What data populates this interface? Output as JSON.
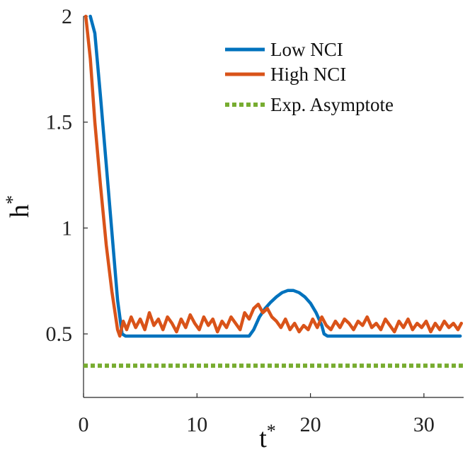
{
  "chart_data": {
    "type": "line",
    "title": "",
    "xlabel": "t",
    "xlabel_superscript": "*",
    "ylabel": "h",
    "ylabel_superscript": "*",
    "xlim": [
      0,
      33.5
    ],
    "ylim": [
      0.2,
      2.0
    ],
    "x_ticks": [
      0,
      10,
      20,
      30
    ],
    "x_tick_labels": [
      "0",
      "10",
      "20",
      "30"
    ],
    "y_ticks": [
      0.5,
      1,
      1.5,
      2
    ],
    "y_tick_labels": [
      "0.5",
      "1",
      "1.5",
      "2"
    ],
    "grid": false,
    "legend_position": "top-right",
    "series": [
      {
        "name": "Low NCI",
        "color": "#0072BD",
        "style": "solid",
        "x": [
          0.6,
          1.0,
          1.5,
          2.0,
          2.5,
          3.0,
          3.4,
          3.7,
          4,
          5,
          6,
          7,
          8,
          9,
          10,
          11,
          12,
          13,
          14,
          14.6,
          15.0,
          15.5,
          16,
          16.5,
          17,
          17.5,
          18,
          18.5,
          19,
          19.5,
          20,
          20.5,
          21,
          21.2,
          21.5,
          22,
          23,
          24,
          25,
          26,
          27,
          28,
          29,
          30,
          31,
          32,
          33.2
        ],
        "y": [
          2.0,
          1.92,
          1.62,
          1.3,
          0.98,
          0.66,
          0.5,
          0.49,
          0.49,
          0.49,
          0.49,
          0.49,
          0.49,
          0.49,
          0.49,
          0.49,
          0.49,
          0.49,
          0.49,
          0.49,
          0.52,
          0.58,
          0.62,
          0.65,
          0.675,
          0.695,
          0.705,
          0.705,
          0.695,
          0.675,
          0.645,
          0.6,
          0.54,
          0.5,
          0.49,
          0.49,
          0.49,
          0.49,
          0.49,
          0.49,
          0.49,
          0.49,
          0.49,
          0.49,
          0.49,
          0.49,
          0.49
        ]
      },
      {
        "name": "High NCI",
        "color": "#D95319",
        "style": "solid",
        "x": [
          0.2,
          0.6,
          1.0,
          1.5,
          2.0,
          2.5,
          3.0,
          3.2,
          3.5,
          3.8,
          4.2,
          4.6,
          5.0,
          5.4,
          5.8,
          6.2,
          6.6,
          7.0,
          7.4,
          7.8,
          8.2,
          8.6,
          9.0,
          9.4,
          9.8,
          10.2,
          10.6,
          11.0,
          11.4,
          11.8,
          12.2,
          12.6,
          13.0,
          13.4,
          13.8,
          14.2,
          14.6,
          15.0,
          15.4,
          15.8,
          16.2,
          16.6,
          17.0,
          17.4,
          17.8,
          18.2,
          18.6,
          19.0,
          19.4,
          19.8,
          20.2,
          20.6,
          21.0,
          21.4,
          21.8,
          22.2,
          22.6,
          23.0,
          23.4,
          23.8,
          24.2,
          24.6,
          25.0,
          25.4,
          25.8,
          26.2,
          26.6,
          27.0,
          27.4,
          27.8,
          28.2,
          28.6,
          29.0,
          29.4,
          29.8,
          30.2,
          30.6,
          31.0,
          31.4,
          31.8,
          32.2,
          32.6,
          33.0,
          33.3
        ],
        "y": [
          2.0,
          1.8,
          1.5,
          1.2,
          0.92,
          0.7,
          0.52,
          0.49,
          0.56,
          0.52,
          0.58,
          0.53,
          0.57,
          0.52,
          0.6,
          0.54,
          0.57,
          0.52,
          0.58,
          0.55,
          0.51,
          0.57,
          0.53,
          0.59,
          0.55,
          0.52,
          0.58,
          0.54,
          0.57,
          0.51,
          0.56,
          0.53,
          0.58,
          0.55,
          0.52,
          0.6,
          0.57,
          0.62,
          0.64,
          0.6,
          0.62,
          0.58,
          0.56,
          0.53,
          0.57,
          0.52,
          0.55,
          0.51,
          0.54,
          0.52,
          0.57,
          0.53,
          0.58,
          0.54,
          0.52,
          0.56,
          0.53,
          0.57,
          0.55,
          0.52,
          0.56,
          0.54,
          0.58,
          0.53,
          0.55,
          0.52,
          0.57,
          0.54,
          0.51,
          0.56,
          0.53,
          0.57,
          0.52,
          0.55,
          0.53,
          0.56,
          0.51,
          0.55,
          0.52,
          0.56,
          0.53,
          0.55,
          0.52,
          0.55
        ]
      },
      {
        "name": "Exp. Asymptote",
        "color": "#77AC30",
        "style": "dotted",
        "x": [
          0,
          33.5
        ],
        "y": [
          0.35,
          0.35
        ]
      }
    ]
  }
}
